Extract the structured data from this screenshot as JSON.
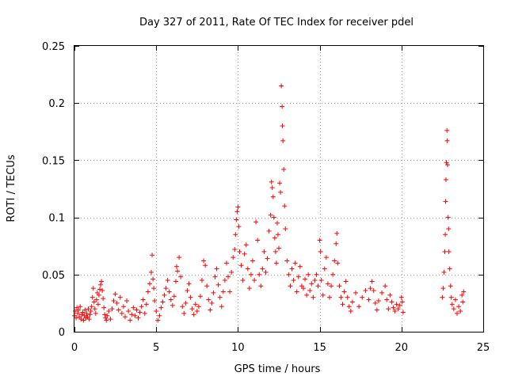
{
  "chart_data": {
    "type": "scatter",
    "title": "Day 327 of 2011, Rate Of TEC Index for receiver pdel",
    "xlabel": "GPS time / hours",
    "ylabel": "ROTI / TECUs",
    "xlim": [
      0,
      25
    ],
    "ylim": [
      0,
      0.25
    ],
    "x_ticks": [
      0,
      5,
      10,
      15,
      20,
      25
    ],
    "y_ticks": [
      0,
      0.05,
      0.1,
      0.15,
      0.2,
      0.25
    ],
    "x_tick_labels": [
      "0",
      "5",
      "10",
      "15",
      "20",
      "25"
    ],
    "y_tick_labels": [
      "0",
      "0.05",
      "0.1",
      "0.15",
      "0.2",
      "0.25"
    ],
    "grid": true,
    "marker": "+",
    "color": "#ff0000",
    "series": [
      {
        "values": [
          [
            0.0,
            0.014
          ],
          [
            0.05,
            0.018
          ],
          [
            0.1,
            0.012
          ],
          [
            0.15,
            0.021
          ],
          [
            0.2,
            0.016
          ],
          [
            0.25,
            0.019
          ],
          [
            0.3,
            0.013
          ],
          [
            0.35,
            0.022
          ],
          [
            0.4,
            0.011
          ],
          [
            0.45,
            0.015
          ],
          [
            0.5,
            0.017
          ],
          [
            0.55,
            0.01
          ],
          [
            0.6,
            0.014
          ],
          [
            0.65,
            0.019
          ],
          [
            0.7,
            0.012
          ],
          [
            0.75,
            0.016
          ],
          [
            0.8,
            0.013
          ],
          [
            0.85,
            0.02
          ],
          [
            0.9,
            0.011
          ],
          [
            0.95,
            0.015
          ],
          [
            1.0,
            0.018
          ],
          [
            1.05,
            0.022
          ],
          [
            1.1,
            0.03
          ],
          [
            1.15,
            0.038
          ],
          [
            1.2,
            0.026
          ],
          [
            1.25,
            0.02
          ],
          [
            1.3,
            0.016
          ],
          [
            1.35,
            0.028
          ],
          [
            1.4,
            0.034
          ],
          [
            1.45,
            0.024
          ],
          [
            1.5,
            0.032
          ],
          [
            1.55,
            0.037
          ],
          [
            1.6,
            0.041
          ],
          [
            1.65,
            0.044
          ],
          [
            1.7,
            0.036
          ],
          [
            1.75,
            0.029
          ],
          [
            1.8,
            0.021
          ],
          [
            1.85,
            0.015
          ],
          [
            1.9,
            0.012
          ],
          [
            1.95,
            0.01
          ],
          [
            2.0,
            0.014
          ],
          [
            2.1,
            0.018
          ],
          [
            2.2,
            0.011
          ],
          [
            2.3,
            0.02
          ],
          [
            2.4,
            0.027
          ],
          [
            2.5,
            0.033
          ],
          [
            2.6,
            0.025
          ],
          [
            2.7,
            0.019
          ],
          [
            2.8,
            0.03
          ],
          [
            2.9,
            0.016
          ],
          [
            3.0,
            0.022
          ],
          [
            3.1,
            0.013
          ],
          [
            3.2,
            0.027
          ],
          [
            3.3,
            0.018
          ],
          [
            3.4,
            0.01
          ],
          [
            3.5,
            0.015
          ],
          [
            3.6,
            0.021
          ],
          [
            3.7,
            0.014
          ],
          [
            3.8,
            0.019
          ],
          [
            3.9,
            0.012
          ],
          [
            4.0,
            0.017
          ],
          [
            4.1,
            0.022
          ],
          [
            4.2,
            0.028
          ],
          [
            4.3,
            0.016
          ],
          [
            4.4,
            0.024
          ],
          [
            4.5,
            0.035
          ],
          [
            4.6,
            0.042
          ],
          [
            4.7,
            0.052
          ],
          [
            4.75,
            0.067
          ],
          [
            4.8,
            0.046
          ],
          [
            4.85,
            0.038
          ],
          [
            4.9,
            0.027
          ],
          [
            5.0,
            0.018
          ],
          [
            5.1,
            0.01
          ],
          [
            5.2,
            0.014
          ],
          [
            5.3,
            0.021
          ],
          [
            5.4,
            0.026
          ],
          [
            5.5,
            0.032
          ],
          [
            5.6,
            0.038
          ],
          [
            5.7,
            0.045
          ],
          [
            5.8,
            0.035
          ],
          [
            5.9,
            0.028
          ],
          [
            6.0,
            0.023
          ],
          [
            6.1,
            0.031
          ],
          [
            6.2,
            0.044
          ],
          [
            6.25,
            0.057
          ],
          [
            6.3,
            0.053
          ],
          [
            6.4,
            0.065
          ],
          [
            6.5,
            0.048
          ],
          [
            6.6,
            0.022
          ],
          [
            6.7,
            0.016
          ],
          [
            6.8,
            0.025
          ],
          [
            6.9,
            0.036
          ],
          [
            7.0,
            0.042
          ],
          [
            7.1,
            0.03
          ],
          [
            7.2,
            0.02
          ],
          [
            7.3,
            0.015
          ],
          [
            7.4,
            0.024
          ],
          [
            7.5,
            0.018
          ],
          [
            7.6,
            0.022
          ],
          [
            7.7,
            0.031
          ],
          [
            7.8,
            0.045
          ],
          [
            7.9,
            0.062
          ],
          [
            8.0,
            0.058
          ],
          [
            8.1,
            0.04
          ],
          [
            8.2,
            0.028
          ],
          [
            8.3,
            0.019
          ],
          [
            8.4,
            0.025
          ],
          [
            8.5,
            0.034
          ],
          [
            8.6,
            0.048
          ],
          [
            8.7,
            0.055
          ],
          [
            8.8,
            0.041
          ],
          [
            8.9,
            0.03
          ],
          [
            9.0,
            0.022
          ],
          [
            9.1,
            0.035
          ],
          [
            9.2,
            0.045
          ],
          [
            9.3,
            0.06
          ],
          [
            9.4,
            0.048
          ],
          [
            9.5,
            0.035
          ],
          [
            9.6,
            0.052
          ],
          [
            9.7,
            0.065
          ],
          [
            9.8,
            0.072
          ],
          [
            9.85,
            0.085
          ],
          [
            9.9,
            0.098
          ],
          [
            9.95,
            0.105
          ],
          [
            10.0,
            0.109
          ],
          [
            10.05,
            0.092
          ],
          [
            10.1,
            0.07
          ],
          [
            10.2,
            0.058
          ],
          [
            10.3,
            0.045
          ],
          [
            10.4,
            0.068
          ],
          [
            10.5,
            0.076
          ],
          [
            10.6,
            0.055
          ],
          [
            10.7,
            0.038
          ],
          [
            10.8,
            0.05
          ],
          [
            10.9,
            0.062
          ],
          [
            11.0,
            0.045
          ],
          [
            11.1,
            0.096
          ],
          [
            11.2,
            0.08
          ],
          [
            11.3,
            0.05
          ],
          [
            11.4,
            0.04
          ],
          [
            11.5,
            0.055
          ],
          [
            11.6,
            0.07
          ],
          [
            11.7,
            0.052
          ],
          [
            11.8,
            0.064
          ],
          [
            11.9,
            0.088
          ],
          [
            12.0,
            0.102
          ],
          [
            12.05,
            0.131
          ],
          [
            12.1,
            0.126
          ],
          [
            12.15,
            0.118
          ],
          [
            12.2,
            0.1
          ],
          [
            12.25,
            0.082
          ],
          [
            12.3,
            0.07
          ],
          [
            12.35,
            0.06
          ],
          [
            12.4,
            0.095
          ],
          [
            12.45,
            0.085
          ],
          [
            12.5,
            0.073
          ],
          [
            12.55,
            0.13
          ],
          [
            12.6,
            0.122
          ],
          [
            12.65,
            0.215
          ],
          [
            12.7,
            0.197
          ],
          [
            12.72,
            0.18
          ],
          [
            12.75,
            0.167
          ],
          [
            12.8,
            0.142
          ],
          [
            12.85,
            0.11
          ],
          [
            12.9,
            0.09
          ],
          [
            13.0,
            0.062
          ],
          [
            13.1,
            0.05
          ],
          [
            13.2,
            0.04
          ],
          [
            13.3,
            0.055
          ],
          [
            13.4,
            0.045
          ],
          [
            13.5,
            0.06
          ],
          [
            13.6,
            0.035
          ],
          [
            13.7,
            0.048
          ],
          [
            13.8,
            0.057
          ],
          [
            13.9,
            0.04
          ],
          [
            14.0,
            0.038
          ],
          [
            14.1,
            0.046
          ],
          [
            14.2,
            0.032
          ],
          [
            14.3,
            0.05
          ],
          [
            14.4,
            0.036
          ],
          [
            14.5,
            0.042
          ],
          [
            14.6,
            0.03
          ],
          [
            14.7,
            0.045
          ],
          [
            14.8,
            0.05
          ],
          [
            14.9,
            0.04
          ],
          [
            15.0,
            0.08
          ],
          [
            15.05,
            0.07
          ],
          [
            15.1,
            0.045
          ],
          [
            15.2,
            0.032
          ],
          [
            15.3,
            0.055
          ],
          [
            15.4,
            0.065
          ],
          [
            15.5,
            0.042
          ],
          [
            15.6,
            0.03
          ],
          [
            15.7,
            0.04
          ],
          [
            15.8,
            0.05
          ],
          [
            15.9,
            0.062
          ],
          [
            16.0,
            0.077
          ],
          [
            16.05,
            0.086
          ],
          [
            16.1,
            0.06
          ],
          [
            16.2,
            0.04
          ],
          [
            16.3,
            0.03
          ],
          [
            16.4,
            0.024
          ],
          [
            16.5,
            0.035
          ],
          [
            16.6,
            0.044
          ],
          [
            16.7,
            0.03
          ],
          [
            16.8,
            0.022
          ],
          [
            16.9,
            0.018
          ],
          [
            17.0,
            0.026
          ],
          [
            17.2,
            0.034
          ],
          [
            17.4,
            0.022
          ],
          [
            17.6,
            0.03
          ],
          [
            17.8,
            0.036
          ],
          [
            18.0,
            0.028
          ],
          [
            18.1,
            0.038
          ],
          [
            18.2,
            0.044
          ],
          [
            18.3,
            0.036
          ],
          [
            18.4,
            0.025
          ],
          [
            18.5,
            0.019
          ],
          [
            18.6,
            0.027
          ],
          [
            18.8,
            0.034
          ],
          [
            19.0,
            0.04
          ],
          [
            19.1,
            0.028
          ],
          [
            19.2,
            0.02
          ],
          [
            19.3,
            0.032
          ],
          [
            19.4,
            0.026
          ],
          [
            19.5,
            0.021
          ],
          [
            19.6,
            0.018
          ],
          [
            19.7,
            0.024
          ],
          [
            19.8,
            0.02
          ],
          [
            19.9,
            0.023
          ],
          [
            20.0,
            0.03
          ],
          [
            20.05,
            0.026
          ],
          [
            20.1,
            0.017
          ],
          [
            22.5,
            0.03
          ],
          [
            22.55,
            0.038
          ],
          [
            22.6,
            0.052
          ],
          [
            22.65,
            0.07
          ],
          [
            22.68,
            0.085
          ],
          [
            22.7,
            0.114
          ],
          [
            22.72,
            0.133
          ],
          [
            22.75,
            0.148
          ],
          [
            22.78,
            0.176
          ],
          [
            22.8,
            0.167
          ],
          [
            22.82,
            0.146
          ],
          [
            22.85,
            0.1
          ],
          [
            22.88,
            0.09
          ],
          [
            22.9,
            0.07
          ],
          [
            22.95,
            0.055
          ],
          [
            23.0,
            0.04
          ],
          [
            23.05,
            0.03
          ],
          [
            23.1,
            0.024
          ],
          [
            23.2,
            0.02
          ],
          [
            23.3,
            0.028
          ],
          [
            23.4,
            0.016
          ],
          [
            23.5,
            0.022
          ],
          [
            23.6,
            0.018
          ],
          [
            23.7,
            0.032
          ],
          [
            23.75,
            0.026
          ],
          [
            23.8,
            0.035
          ]
        ]
      }
    ]
  }
}
